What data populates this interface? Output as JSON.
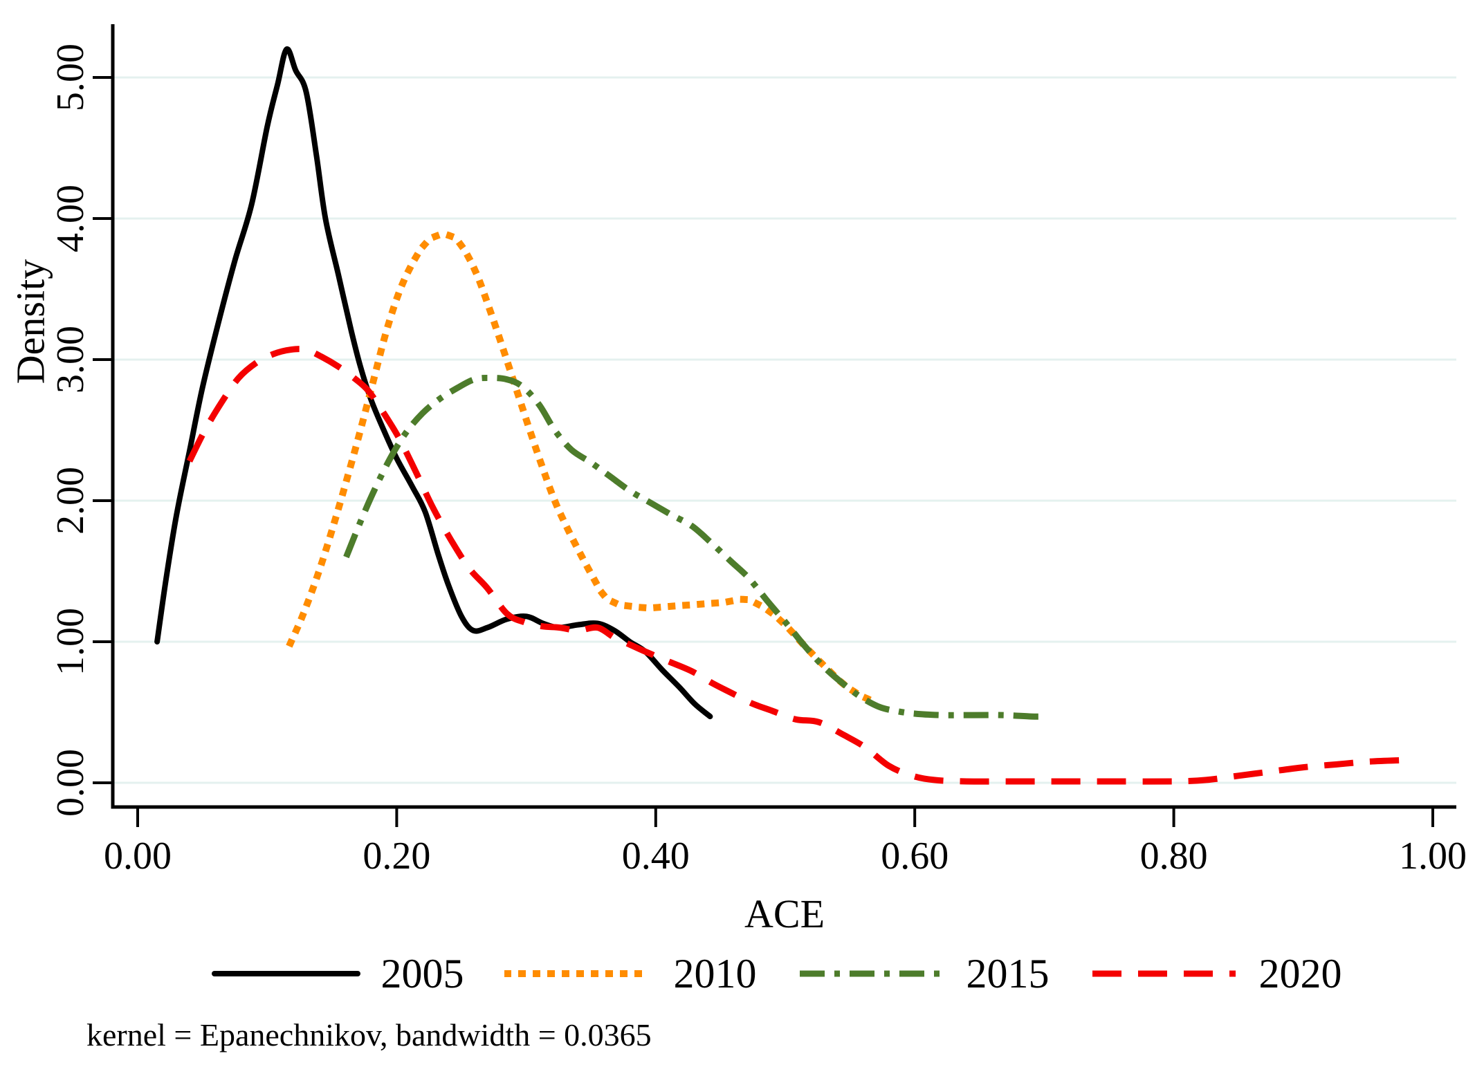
{
  "chart_data": {
    "type": "line",
    "title": "",
    "xlabel": "ACE",
    "ylabel": "Density",
    "note": "kernel = Epanechnikov, bandwidth = 0.0365",
    "xlim": [
      0,
      1.02
    ],
    "ylim": [
      0,
      5.4
    ],
    "grid": "horizontal",
    "gridline_color": "#e4f1ef",
    "legend_position": "bottom",
    "x_ticks": [
      {
        "value": 0.0,
        "label": "0.00"
      },
      {
        "value": 0.2,
        "label": "0.20"
      },
      {
        "value": 0.4,
        "label": "0.40"
      },
      {
        "value": 0.6,
        "label": "0.60"
      },
      {
        "value": 0.8,
        "label": "0.80"
      },
      {
        "value": 1.0,
        "label": "1.00"
      }
    ],
    "y_ticks": [
      {
        "value": 0,
        "label": "0.00"
      },
      {
        "value": 1,
        "label": "1.00"
      },
      {
        "value": 2,
        "label": "2.00"
      },
      {
        "value": 3,
        "label": "3.00"
      },
      {
        "value": 4,
        "label": "4.00"
      },
      {
        "value": 5,
        "label": "5.00"
      }
    ],
    "series": [
      {
        "name": "2005",
        "color": "#000000",
        "style": "solid",
        "peak": [
          0.115,
          5.2
        ],
        "points": [
          [
            0.015,
            1.0
          ],
          [
            0.022,
            1.45
          ],
          [
            0.03,
            1.9
          ],
          [
            0.04,
            2.35
          ],
          [
            0.05,
            2.8
          ],
          [
            0.062,
            3.25
          ],
          [
            0.075,
            3.7
          ],
          [
            0.088,
            4.1
          ],
          [
            0.1,
            4.65
          ],
          [
            0.108,
            4.95
          ],
          [
            0.115,
            5.2
          ],
          [
            0.122,
            5.05
          ],
          [
            0.13,
            4.9
          ],
          [
            0.138,
            4.45
          ],
          [
            0.145,
            4.0
          ],
          [
            0.155,
            3.6
          ],
          [
            0.165,
            3.2
          ],
          [
            0.172,
            2.95
          ],
          [
            0.18,
            2.72
          ],
          [
            0.19,
            2.5
          ],
          [
            0.2,
            2.3
          ],
          [
            0.212,
            2.1
          ],
          [
            0.222,
            1.92
          ],
          [
            0.232,
            1.62
          ],
          [
            0.24,
            1.4
          ],
          [
            0.25,
            1.18
          ],
          [
            0.259,
            1.08
          ],
          [
            0.27,
            1.1
          ],
          [
            0.285,
            1.16
          ],
          [
            0.3,
            1.18
          ],
          [
            0.313,
            1.13
          ],
          [
            0.325,
            1.1
          ],
          [
            0.34,
            1.12
          ],
          [
            0.355,
            1.13
          ],
          [
            0.368,
            1.08
          ],
          [
            0.38,
            1.0
          ],
          [
            0.392,
            0.93
          ],
          [
            0.405,
            0.8
          ],
          [
            0.418,
            0.68
          ],
          [
            0.43,
            0.56
          ],
          [
            0.442,
            0.47
          ]
        ]
      },
      {
        "name": "2010",
        "color": "#ff8c00",
        "style": "dotted",
        "peak": [
          0.232,
          3.88
        ],
        "points": [
          [
            0.118,
            0.99
          ],
          [
            0.128,
            1.2
          ],
          [
            0.14,
            1.5
          ],
          [
            0.152,
            1.85
          ],
          [
            0.163,
            2.2
          ],
          [
            0.172,
            2.5
          ],
          [
            0.182,
            2.85
          ],
          [
            0.192,
            3.2
          ],
          [
            0.202,
            3.48
          ],
          [
            0.212,
            3.68
          ],
          [
            0.222,
            3.82
          ],
          [
            0.232,
            3.88
          ],
          [
            0.243,
            3.87
          ],
          [
            0.252,
            3.78
          ],
          [
            0.262,
            3.6
          ],
          [
            0.272,
            3.35
          ],
          [
            0.282,
            3.08
          ],
          [
            0.292,
            2.8
          ],
          [
            0.302,
            2.52
          ],
          [
            0.312,
            2.25
          ],
          [
            0.322,
            2.0
          ],
          [
            0.332,
            1.8
          ],
          [
            0.342,
            1.62
          ],
          [
            0.352,
            1.45
          ],
          [
            0.36,
            1.33
          ],
          [
            0.37,
            1.27
          ],
          [
            0.382,
            1.25
          ],
          [
            0.395,
            1.24
          ],
          [
            0.41,
            1.25
          ],
          [
            0.425,
            1.26
          ],
          [
            0.44,
            1.27
          ],
          [
            0.453,
            1.28
          ],
          [
            0.468,
            1.3
          ],
          [
            0.478,
            1.27
          ],
          [
            0.49,
            1.2
          ],
          [
            0.502,
            1.1
          ],
          [
            0.515,
            0.97
          ],
          [
            0.53,
            0.83
          ],
          [
            0.545,
            0.7
          ],
          [
            0.558,
            0.62
          ],
          [
            0.57,
            0.57
          ]
        ]
      },
      {
        "name": "2015",
        "color": "#4d7c2b",
        "style": "dashdot",
        "peak": [
          0.272,
          2.87
        ],
        "points": [
          [
            0.161,
            1.6
          ],
          [
            0.172,
            1.85
          ],
          [
            0.183,
            2.08
          ],
          [
            0.195,
            2.3
          ],
          [
            0.207,
            2.48
          ],
          [
            0.22,
            2.62
          ],
          [
            0.233,
            2.72
          ],
          [
            0.247,
            2.8
          ],
          [
            0.26,
            2.86
          ],
          [
            0.272,
            2.87
          ],
          [
            0.285,
            2.86
          ],
          [
            0.297,
            2.81
          ],
          [
            0.31,
            2.68
          ],
          [
            0.322,
            2.5
          ],
          [
            0.335,
            2.36
          ],
          [
            0.35,
            2.27
          ],
          [
            0.365,
            2.17
          ],
          [
            0.38,
            2.07
          ],
          [
            0.395,
            1.99
          ],
          [
            0.412,
            1.9
          ],
          [
            0.428,
            1.82
          ],
          [
            0.443,
            1.7
          ],
          [
            0.458,
            1.57
          ],
          [
            0.472,
            1.45
          ],
          [
            0.487,
            1.28
          ],
          [
            0.5,
            1.14
          ],
          [
            0.515,
            0.97
          ],
          [
            0.53,
            0.82
          ],
          [
            0.545,
            0.7
          ],
          [
            0.558,
            0.61
          ],
          [
            0.572,
            0.54
          ],
          [
            0.585,
            0.51
          ],
          [
            0.6,
            0.49
          ],
          [
            0.62,
            0.48
          ],
          [
            0.645,
            0.48
          ],
          [
            0.668,
            0.48
          ],
          [
            0.69,
            0.47
          ],
          [
            0.7,
            0.47
          ]
        ]
      },
      {
        "name": "2020",
        "color": "#f40000",
        "style": "dashed",
        "peak": [
          0.125,
          3.07
        ],
        "points": [
          [
            0.04,
            2.28
          ],
          [
            0.052,
            2.5
          ],
          [
            0.065,
            2.7
          ],
          [
            0.078,
            2.87
          ],
          [
            0.092,
            2.98
          ],
          [
            0.105,
            3.04
          ],
          [
            0.118,
            3.07
          ],
          [
            0.13,
            3.07
          ],
          [
            0.142,
            3.02
          ],
          [
            0.155,
            2.95
          ],
          [
            0.167,
            2.87
          ],
          [
            0.178,
            2.78
          ],
          [
            0.19,
            2.62
          ],
          [
            0.202,
            2.44
          ],
          [
            0.215,
            2.2
          ],
          [
            0.228,
            1.95
          ],
          [
            0.242,
            1.72
          ],
          [
            0.256,
            1.52
          ],
          [
            0.27,
            1.38
          ],
          [
            0.285,
            1.2
          ],
          [
            0.298,
            1.14
          ],
          [
            0.312,
            1.11
          ],
          [
            0.326,
            1.1
          ],
          [
            0.34,
            1.08
          ],
          [
            0.355,
            1.1
          ],
          [
            0.368,
            1.03
          ],
          [
            0.38,
            0.98
          ],
          [
            0.392,
            0.93
          ],
          [
            0.41,
            0.86
          ],
          [
            0.428,
            0.79
          ],
          [
            0.445,
            0.7
          ],
          [
            0.46,
            0.63
          ],
          [
            0.475,
            0.56
          ],
          [
            0.49,
            0.51
          ],
          [
            0.508,
            0.45
          ],
          [
            0.526,
            0.43
          ],
          [
            0.545,
            0.34
          ],
          [
            0.562,
            0.25
          ],
          [
            0.58,
            0.12
          ],
          [
            0.598,
            0.05
          ],
          [
            0.615,
            0.02
          ],
          [
            0.64,
            0.01
          ],
          [
            0.68,
            0.01
          ],
          [
            0.72,
            0.01
          ],
          [
            0.76,
            0.01
          ],
          [
            0.8,
            0.01
          ],
          [
            0.825,
            0.02
          ],
          [
            0.85,
            0.05
          ],
          [
            0.875,
            0.08
          ],
          [
            0.9,
            0.11
          ],
          [
            0.925,
            0.13
          ],
          [
            0.95,
            0.15
          ],
          [
            0.975,
            0.16
          ]
        ]
      }
    ]
  }
}
